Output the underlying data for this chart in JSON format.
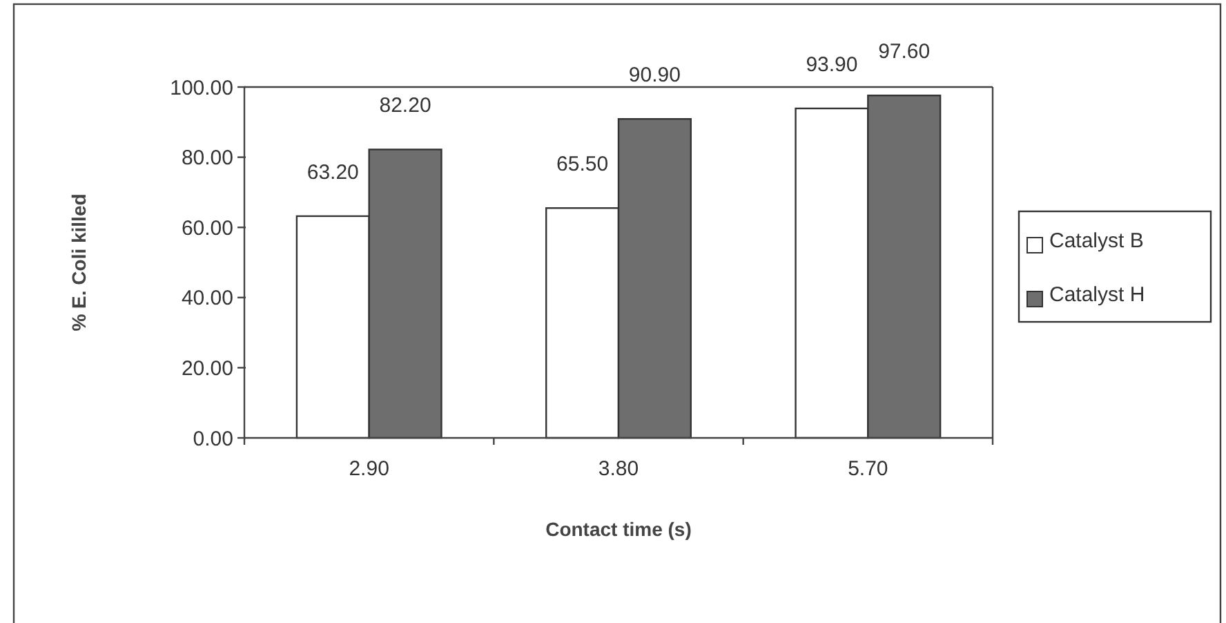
{
  "chart_data": {
    "type": "bar",
    "xlabel": "Contact time (s)",
    "ylabel": "% E. Coli killed",
    "categories": [
      "2.90",
      "3.80",
      "5.70"
    ],
    "series": [
      {
        "name": "Catalyst B",
        "color": "#ffffff",
        "values": [
          63.2,
          65.5,
          93.9
        ],
        "value_labels": [
          "63.20",
          "65.50",
          "93.90"
        ]
      },
      {
        "name": "Catalyst H",
        "color": "#6e6e6e",
        "values": [
          82.2,
          90.9,
          97.6
        ],
        "value_labels": [
          "82.20",
          "90.90",
          "97.60"
        ]
      }
    ],
    "ylim": [
      0,
      100
    ],
    "yticks": [
      {
        "value": 0,
        "label": "0.00"
      },
      {
        "value": 20,
        "label": "20.00"
      },
      {
        "value": 40,
        "label": "40.00"
      },
      {
        "value": 60,
        "label": "60.00"
      },
      {
        "value": 80,
        "label": "80.00"
      },
      {
        "value": 100,
        "label": "100.00"
      }
    ],
    "grid": false,
    "legend": "right"
  }
}
